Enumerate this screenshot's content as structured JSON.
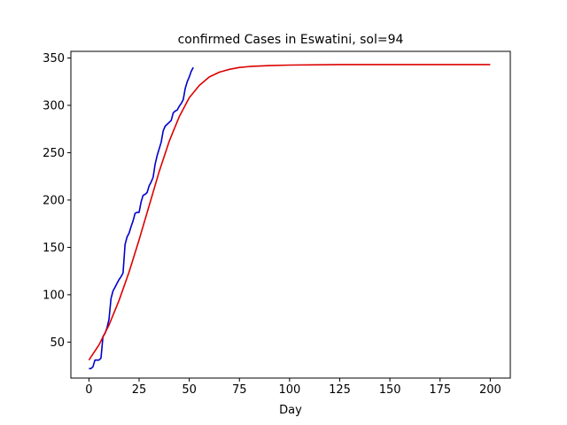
{
  "chart_data": {
    "type": "line",
    "title": "confirmed Cases in Eswatini, sol=94",
    "xlabel": "Day",
    "ylabel": "",
    "xlim": [
      -9,
      210
    ],
    "ylim": [
      12,
      357
    ],
    "xticks": [
      0,
      25,
      50,
      75,
      100,
      125,
      150,
      175,
      200
    ],
    "yticks": [
      50,
      100,
      150,
      200,
      250,
      300,
      350
    ],
    "grid": false,
    "legend": "none",
    "series": [
      {
        "color": "#0000cc",
        "x": [
          0,
          1,
          2,
          3,
          4,
          5,
          6,
          7,
          8,
          9,
          10,
          11,
          12,
          13,
          14,
          15,
          16,
          17,
          18,
          19,
          20,
          21,
          22,
          23,
          24,
          25,
          26,
          27,
          28,
          29,
          30,
          31,
          32,
          33,
          34,
          35,
          36,
          37,
          38,
          39,
          40,
          41,
          42,
          43,
          44,
          45,
          46,
          47,
          48,
          49,
          50,
          51,
          52
        ],
        "y": [
          22,
          22,
          24,
          31,
          31,
          31,
          33,
          56,
          59,
          65,
          74,
          96,
          104,
          108,
          112,
          116,
          119,
          123,
          153,
          161,
          165,
          172,
          178,
          186,
          187,
          187,
          198,
          205,
          206,
          208,
          215,
          219,
          224,
          238,
          247,
          254,
          261,
          273,
          278,
          280,
          282,
          284,
          292,
          294,
          295,
          299,
          302,
          306,
          318,
          325,
          330,
          336,
          340
        ]
      },
      {
        "color": "#dd0000",
        "x": [
          0,
          5,
          10,
          15,
          20,
          25,
          30,
          35,
          40,
          45,
          50,
          55,
          60,
          65,
          70,
          75,
          80,
          90,
          100,
          125,
          150,
          175,
          200
        ],
        "y": [
          31,
          47,
          68,
          94,
          124,
          158,
          194,
          230,
          262,
          288,
          308,
          321,
          330,
          335,
          338,
          340,
          341,
          342,
          342.5,
          343,
          343,
          343,
          343
        ]
      }
    ]
  }
}
